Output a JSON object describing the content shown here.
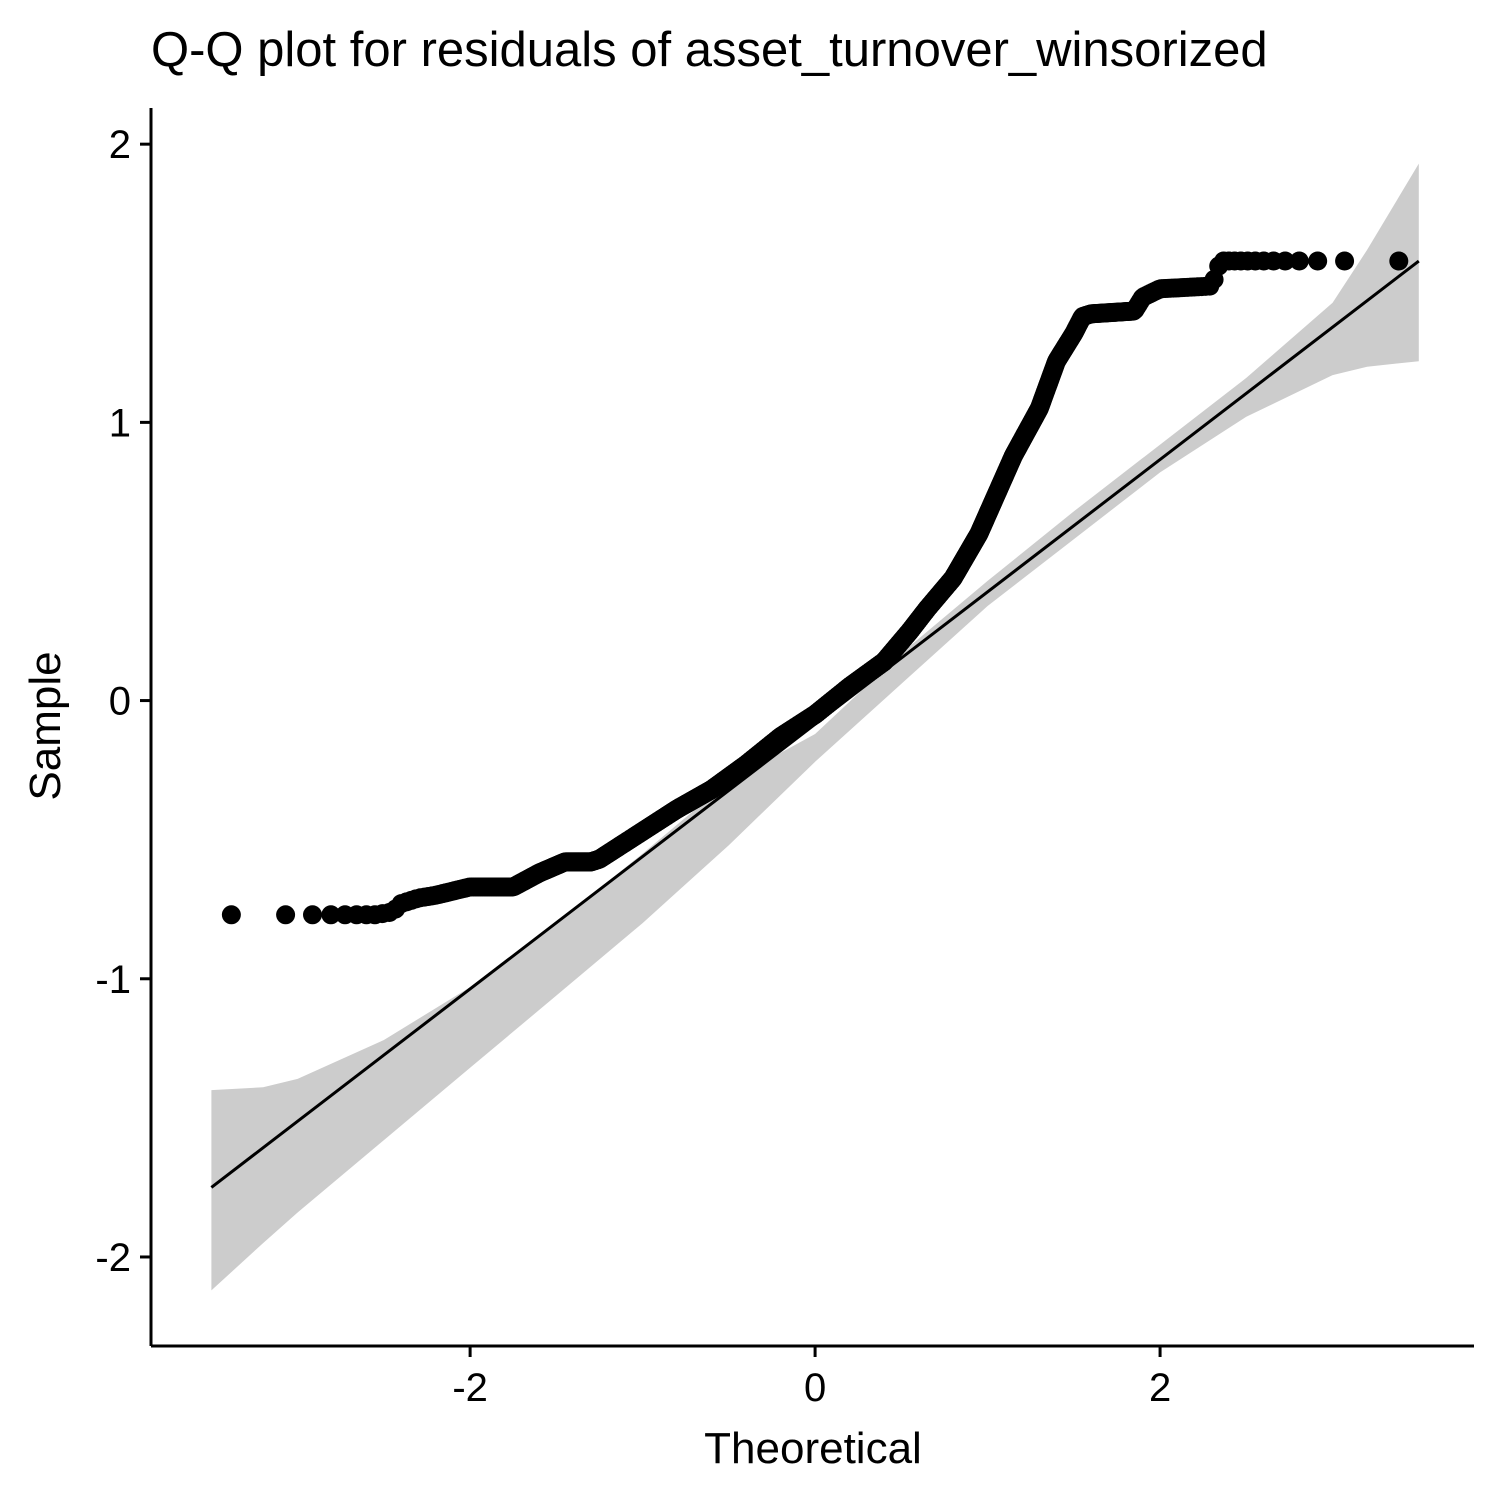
{
  "chart_data": {
    "type": "scatter",
    "title": "Q-Q plot for residuals of asset_turnover_winsorized",
    "xlabel": "Theoretical",
    "ylabel": "Sample",
    "xlim": [
      -3.85,
      3.82
    ],
    "ylim": [
      -2.32,
      2.13
    ],
    "x_ticks": [
      -2,
      0,
      2
    ],
    "x_tick_labels": [
      "-2",
      "0",
      "2"
    ],
    "y_ticks": [
      -2,
      -1,
      0,
      1,
      2
    ],
    "y_tick_labels": [
      "-2",
      "-1",
      "0",
      "1",
      "2"
    ],
    "grid": false,
    "point_color": "#000000",
    "band_color": "#cccccc",
    "line_color": "#000000",
    "reference_line": {
      "x": [
        -3.5,
        3.5
      ],
      "y": [
        -1.75,
        1.58
      ]
    },
    "confidence_band": {
      "x": [
        -3.5,
        -3.2,
        -3.0,
        -2.5,
        -2.0,
        -1.5,
        -1.0,
        -0.5,
        0.0,
        0.5,
        1.0,
        1.5,
        2.0,
        2.5,
        3.0,
        3.2,
        3.5
      ],
      "lower": [
        -2.12,
        -1.95,
        -1.84,
        -1.58,
        -1.32,
        -1.06,
        -0.8,
        -0.52,
        -0.22,
        0.06,
        0.34,
        0.58,
        0.82,
        1.02,
        1.17,
        1.2,
        1.22
      ],
      "upper": [
        -1.4,
        -1.39,
        -1.36,
        -1.22,
        -1.03,
        -0.8,
        -0.55,
        -0.29,
        -0.12,
        0.17,
        0.43,
        0.68,
        0.92,
        1.16,
        1.43,
        1.62,
        1.93
      ]
    },
    "points_profile": {
      "x": [
        -3.5,
        -3.2,
        -3.05,
        -2.95,
        -2.85,
        -2.75,
        -2.65,
        -2.55,
        -2.45,
        -2.4,
        -2.3,
        -2.2,
        -2.0,
        -1.9,
        -1.75,
        -1.6,
        -1.45,
        -1.3,
        -1.25,
        -1.15,
        -1.0,
        -0.8,
        -0.6,
        -0.4,
        -0.2,
        0.0,
        0.2,
        0.4,
        0.55,
        0.65,
        0.8,
        0.95,
        1.05,
        1.15,
        1.3,
        1.4,
        1.5,
        1.55,
        1.6,
        1.85,
        1.9,
        2.0,
        2.3,
        2.35,
        2.8,
        3.0,
        3.2,
        3.5
      ],
      "y": [
        -0.77,
        -0.77,
        -0.77,
        -0.77,
        -0.77,
        -0.77,
        -0.77,
        -0.77,
        -0.76,
        -0.73,
        -0.71,
        -0.7,
        -0.67,
        -0.67,
        -0.67,
        -0.62,
        -0.58,
        -0.58,
        -0.57,
        -0.53,
        -0.47,
        -0.39,
        -0.32,
        -0.23,
        -0.13,
        -0.05,
        0.05,
        0.14,
        0.25,
        0.33,
        0.44,
        0.6,
        0.74,
        0.88,
        1.05,
        1.22,
        1.32,
        1.38,
        1.39,
        1.4,
        1.45,
        1.48,
        1.49,
        1.58,
        1.58,
        1.58,
        1.58,
        1.58
      ]
    },
    "point_count": 1400
  }
}
